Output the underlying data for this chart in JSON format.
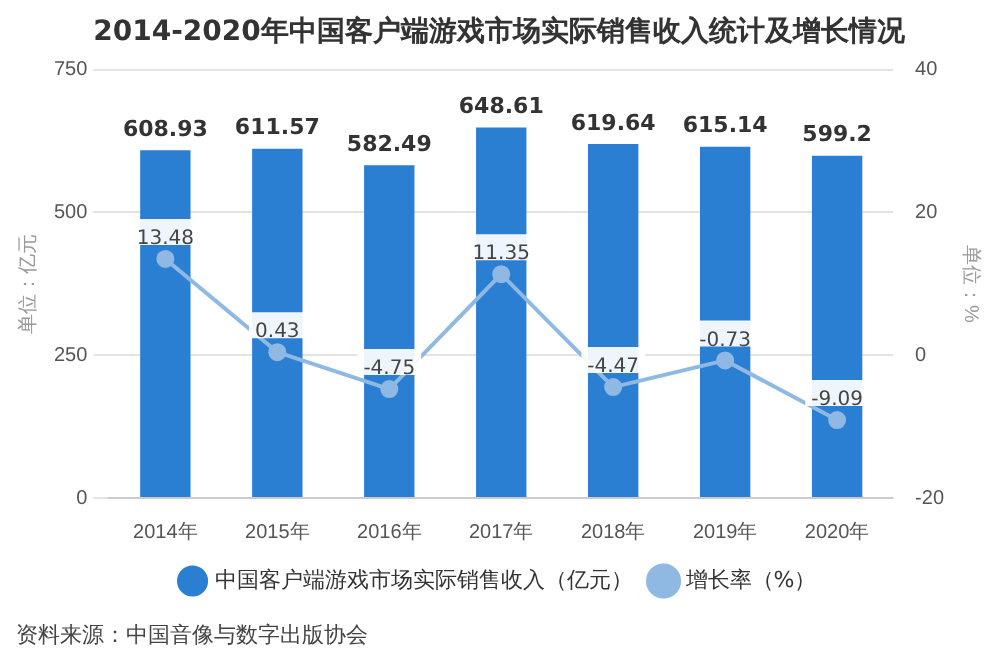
{
  "chart_data": {
    "type": "bar",
    "title": "2014-2020年中国客户端游戏市场实际销售收入统计及增长情况",
    "categories": [
      "2014年",
      "2015年",
      "2016年",
      "2017年",
      "2018年",
      "2019年",
      "2020年"
    ],
    "series": [
      {
        "name": "中国客户端游戏市场实际销售收入（亿元）",
        "color": "#2b7fd3",
        "values": [
          608.93,
          611.57,
          582.49,
          648.61,
          619.64,
          615.14,
          599.2
        ]
      },
      {
        "name": "增长率（%）",
        "type": "line",
        "axis": "y2",
        "color": "#8fb9e3",
        "values": [
          13.48,
          0.43,
          -4.75,
          11.35,
          -4.47,
          -0.73,
          -9.09
        ]
      }
    ],
    "ylabel": "单位：亿元",
    "y2label": "单位：%",
    "ylim": [
      0,
      750
    ],
    "yticks": [
      0,
      250,
      500,
      750
    ],
    "y2lim": [
      -20,
      40
    ],
    "y2ticks": [
      -20,
      0,
      20,
      40
    ],
    "grid": "y",
    "legend": "bottom",
    "marker": "circle",
    "data_labels": true,
    "annotations": [
      "资料来源：中国音像与数字出版协会"
    ]
  }
}
